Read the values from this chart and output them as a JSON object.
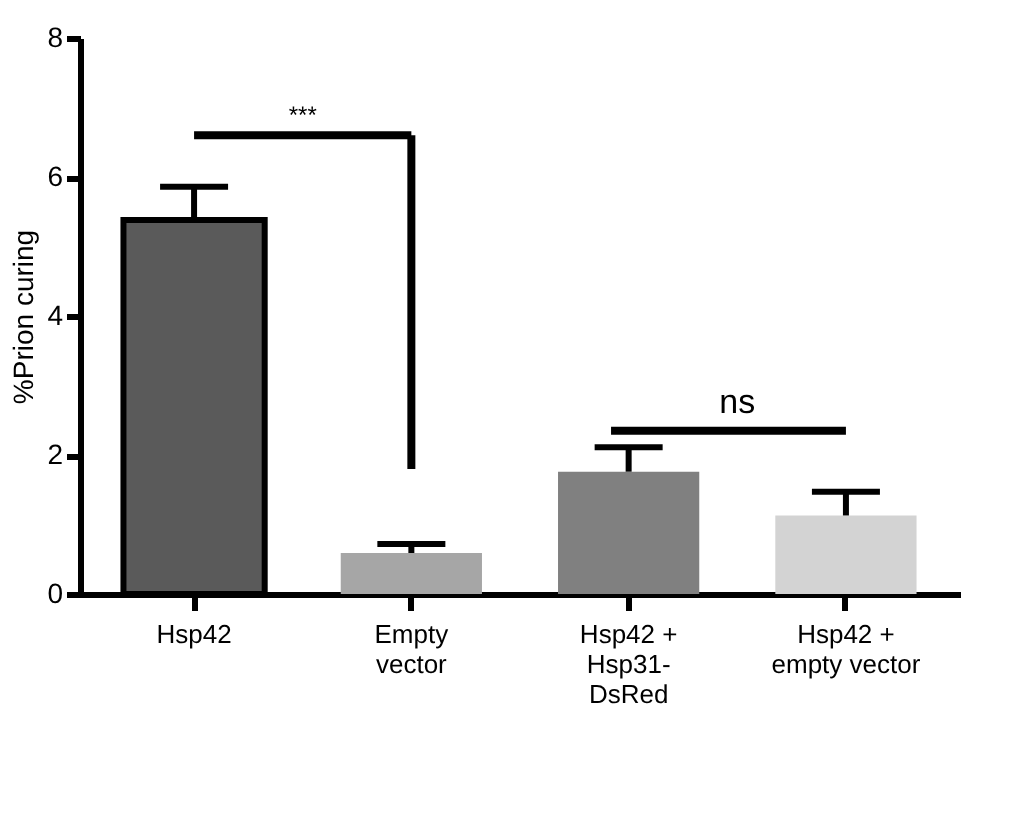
{
  "chart_data": {
    "type": "bar",
    "ylabel": "%Prion curing",
    "categories": [
      "Hsp42",
      "Empty\nvector",
      "Hsp42 +\nHsp31-\nDsRed",
      "Hsp42 +\nempty vector"
    ],
    "values": [
      5.38,
      0.59,
      1.76,
      1.13
    ],
    "colors": [
      "#5a5a5a",
      "#a6a6a6",
      "#808080",
      "#d3d3d3"
    ],
    "errors": [
      [
        5.38,
        5.86
      ],
      [
        0.59,
        0.72
      ],
      [
        1.76,
        2.11
      ],
      [
        1.13,
        1.47
      ]
    ],
    "ylim": [
      0,
      8
    ],
    "yticks": [
      0,
      2,
      4,
      6,
      8
    ],
    "grid": false,
    "annotations": [
      "***",
      "ns"
    ]
  }
}
